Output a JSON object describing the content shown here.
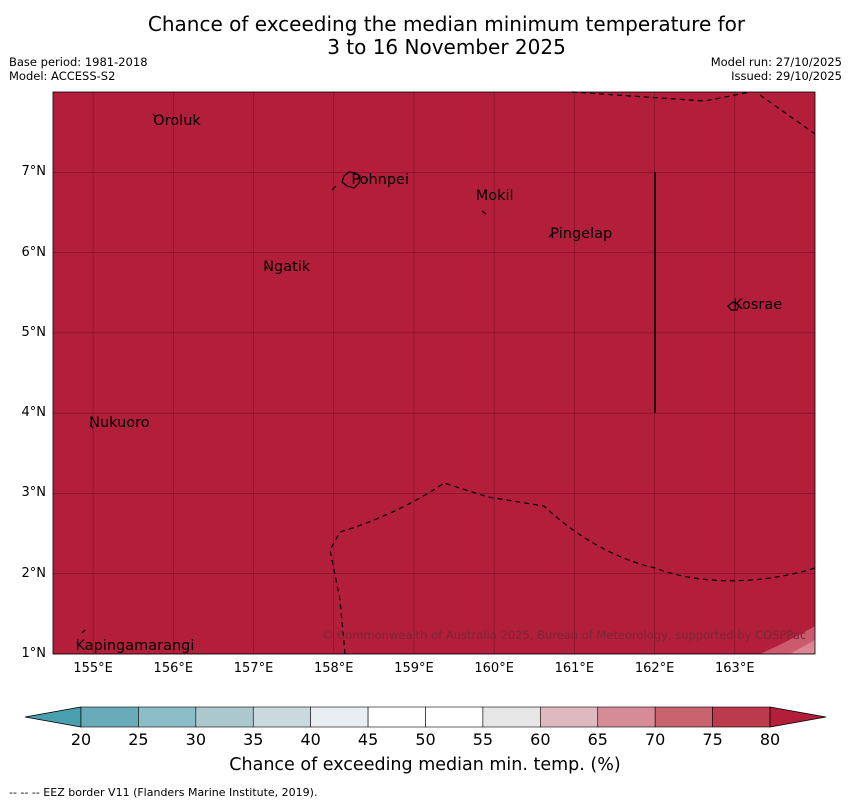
{
  "title": {
    "line1": "Chance of exceeding the median minimum temperature for",
    "line2": "3 to 16 November 2025"
  },
  "meta": {
    "base_period": "Base period: 1981-2018",
    "model": "Model: ACCESS-S2",
    "model_run": "Model run: 27/10/2025",
    "issued": "Issued: 29/10/2025"
  },
  "colors": {
    "map_fill": "#b31e3a",
    "gridline": "#7a1327",
    "light_patch": "#cc5a6d",
    "lighter_patch": "#dc8593"
  },
  "map": {
    "lon_range": [
      154.5,
      164.0
    ],
    "lat_range": [
      1.0,
      8.0
    ],
    "lon_ticks": [
      155,
      156,
      157,
      158,
      159,
      160,
      161,
      162,
      163
    ],
    "lat_ticks": [
      1,
      2,
      3,
      4,
      5,
      6,
      7
    ],
    "lon_labels": [
      "155°E",
      "156°E",
      "157°E",
      "158°E",
      "159°E",
      "160°E",
      "161°E",
      "162°E",
      "163°E"
    ],
    "lat_labels": [
      "1°N",
      "2°N",
      "3°N",
      "4°N",
      "5°N",
      "6°N",
      "7°N"
    ],
    "places": [
      {
        "name": "Oroluk",
        "lon": 155.75,
        "lat": 7.62
      },
      {
        "name": "Pohnpei",
        "lon": 158.22,
        "lat": 6.88
      },
      {
        "name": "Mokil",
        "lon": 159.77,
        "lat": 6.68
      },
      {
        "name": "Pingelap",
        "lon": 160.7,
        "lat": 6.21
      },
      {
        "name": "Ngatik",
        "lon": 157.12,
        "lat": 5.79
      },
      {
        "name": "Kosrae",
        "lon": 162.98,
        "lat": 5.32
      },
      {
        "name": "Nukuoro",
        "lon": 154.95,
        "lat": 3.85
      },
      {
        "name": "Kapingamarangi",
        "lon": 154.78,
        "lat": 1.07
      }
    ],
    "copyright": "© Commonwealth of Australia 2025, Bureau of Meteorology, supported by COSPPac"
  },
  "colorbar": {
    "labels": [
      "20",
      "25",
      "30",
      "35",
      "40",
      "45",
      "50",
      "55",
      "60",
      "65",
      "70",
      "75",
      "80"
    ],
    "colors": [
      "#6aabb9",
      "#8cbcc6",
      "#abc9cc",
      "#cad9dd",
      "#e8eef1",
      "#ffffff",
      "#ffffff",
      "#e6e6e6",
      "#debac0",
      "#d68c97",
      "#c9646f",
      "#bb3a4c"
    ],
    "under_color": "#4a9fae",
    "over_color": "#b31e3a",
    "title": "Chance of exceeding median min. temp. (%)"
  },
  "footnote": "--  --  -- EEZ border V11 (Flanders Marine Institute, 2019)."
}
